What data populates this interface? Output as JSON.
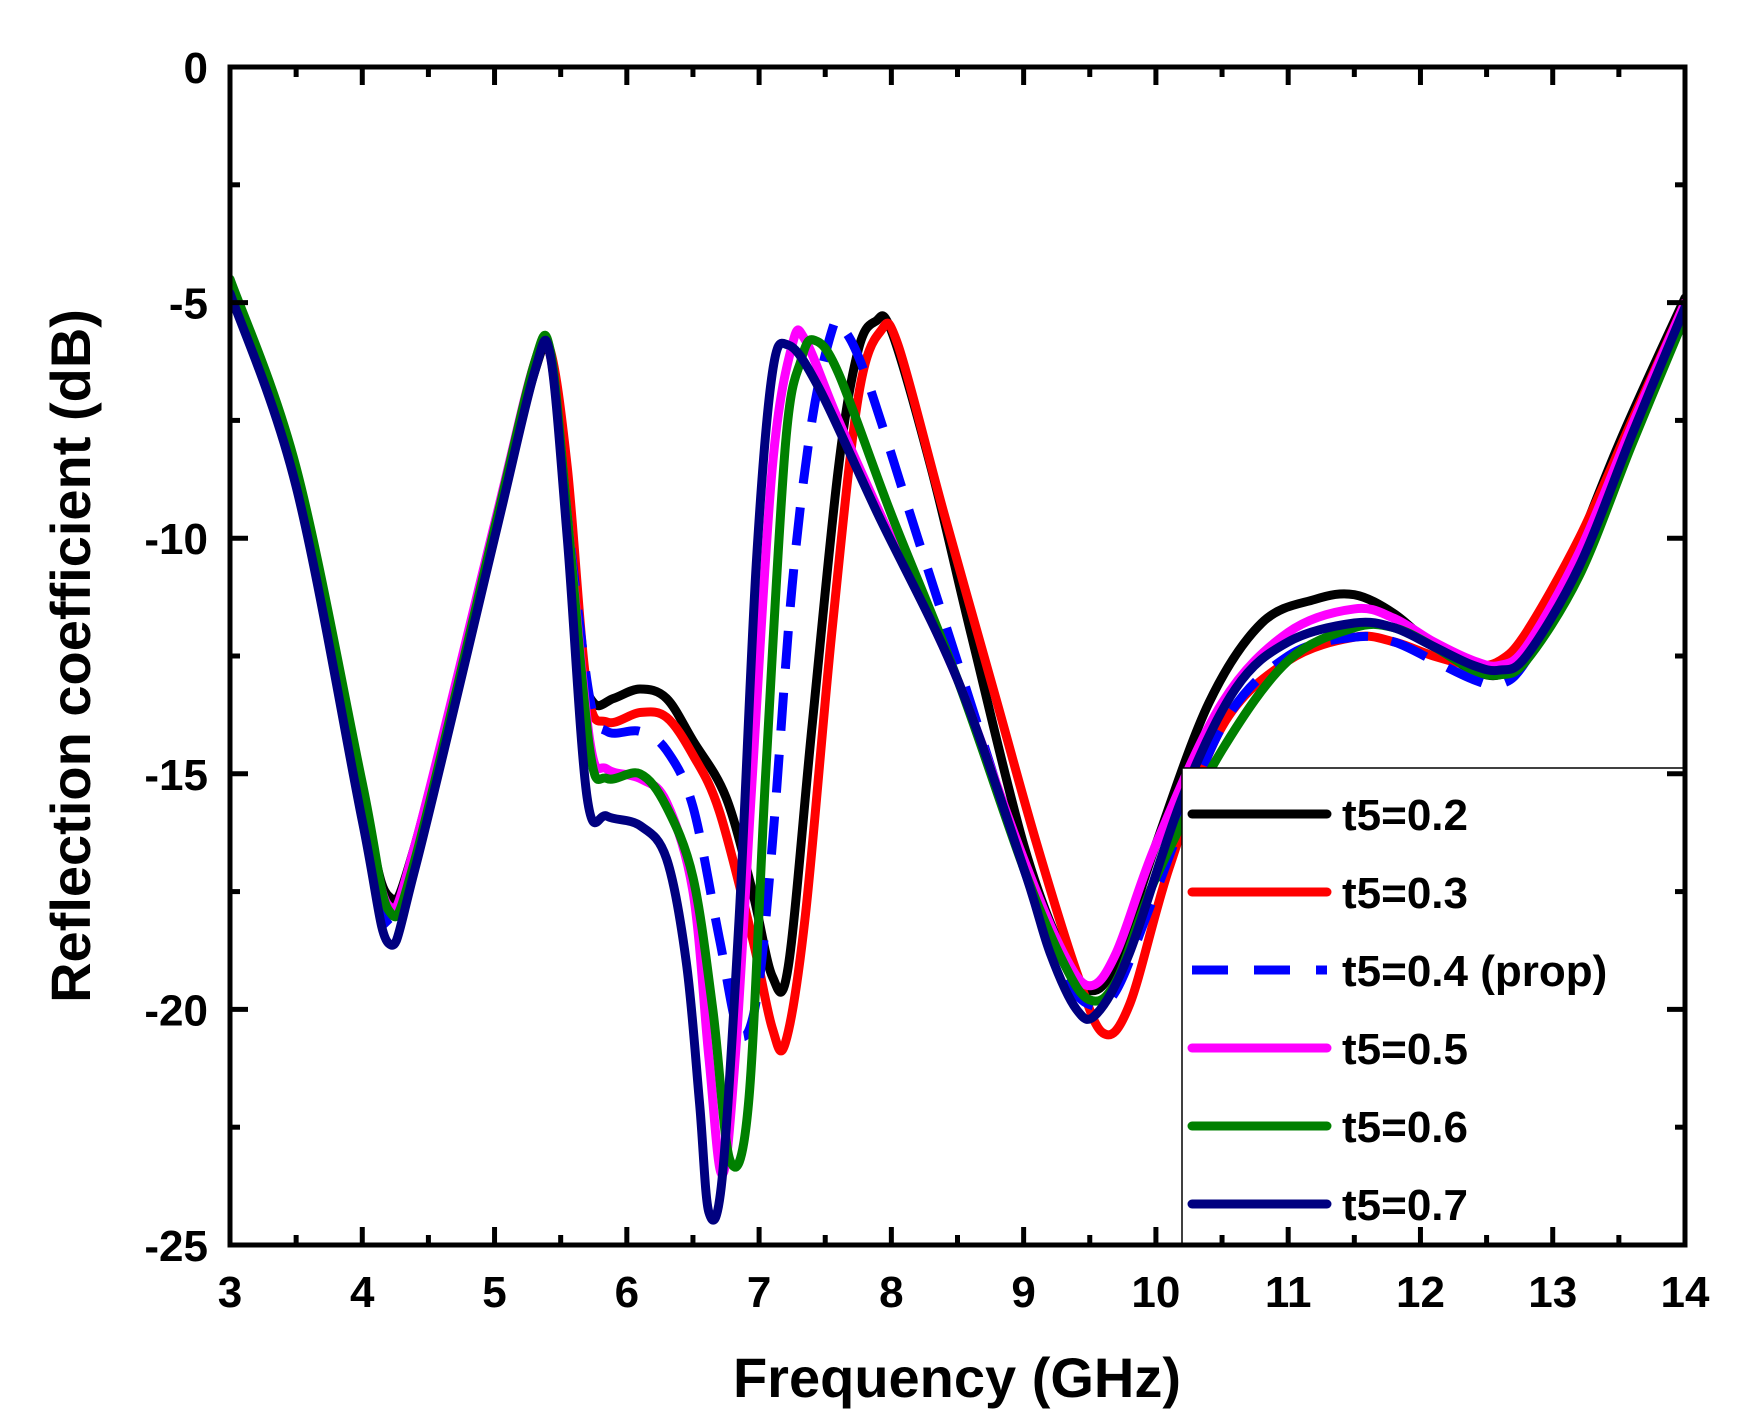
{
  "chart_data": {
    "type": "line",
    "title": "",
    "xlabel": "Frequency (GHz)",
    "ylabel": "Reflection coefficient (dB)",
    "xlim": [
      3,
      14
    ],
    "ylim": [
      -25,
      0
    ],
    "xticks": [
      3,
      4,
      5,
      6,
      7,
      8,
      9,
      10,
      11,
      12,
      13,
      14
    ],
    "yticks": [
      0,
      -5,
      -10,
      -15,
      -20,
      -25
    ],
    "grid": false,
    "legend_position": "bottom-right",
    "series": [
      {
        "name": "t5=0.2",
        "color": "#000000",
        "dash": false,
        "points": [
          [
            3,
            -4.7
          ],
          [
            3.5,
            -8.8
          ],
          [
            4,
            -15.5
          ],
          [
            4.2,
            -17.6
          ],
          [
            4.4,
            -16.5
          ],
          [
            5,
            -9.8
          ],
          [
            5.3,
            -6.5
          ],
          [
            5.42,
            -6.1
          ],
          [
            5.55,
            -9
          ],
          [
            5.65,
            -12.5
          ],
          [
            5.75,
            -13.5
          ],
          [
            5.9,
            -13.4
          ],
          [
            6.1,
            -13.2
          ],
          [
            6.3,
            -13.4
          ],
          [
            6.5,
            -14.3
          ],
          [
            6.75,
            -15.5
          ],
          [
            6.95,
            -17.5
          ],
          [
            7.1,
            -19.3
          ],
          [
            7.22,
            -19.1
          ],
          [
            7.4,
            -14
          ],
          [
            7.6,
            -8.5
          ],
          [
            7.75,
            -6
          ],
          [
            7.88,
            -5.4
          ],
          [
            8.0,
            -5.6
          ],
          [
            8.3,
            -8.5
          ],
          [
            8.6,
            -12
          ],
          [
            9,
            -16.5
          ],
          [
            9.3,
            -18.8
          ],
          [
            9.5,
            -19.6
          ],
          [
            9.7,
            -19
          ],
          [
            10,
            -16.5
          ],
          [
            10.4,
            -13.5
          ],
          [
            10.8,
            -11.8
          ],
          [
            11.2,
            -11.3
          ],
          [
            11.5,
            -11.2
          ],
          [
            11.8,
            -11.6
          ],
          [
            12.1,
            -12.3
          ],
          [
            12.4,
            -12.8
          ],
          [
            12.6,
            -12.9
          ],
          [
            12.8,
            -12.5
          ],
          [
            13,
            -11.5
          ],
          [
            13.5,
            -8
          ],
          [
            14,
            -4.9
          ]
        ]
      },
      {
        "name": "t5=0.3",
        "color": "#ff0000",
        "dash": false,
        "points": [
          [
            3,
            -4.7
          ],
          [
            3.5,
            -8.8
          ],
          [
            4,
            -15.6
          ],
          [
            4.2,
            -17.9
          ],
          [
            4.4,
            -16.6
          ],
          [
            5,
            -9.8
          ],
          [
            5.3,
            -6.3
          ],
          [
            5.42,
            -6.0
          ],
          [
            5.55,
            -8.5
          ],
          [
            5.7,
            -13.2
          ],
          [
            5.85,
            -13.9
          ],
          [
            6.1,
            -13.7
          ],
          [
            6.3,
            -13.8
          ],
          [
            6.5,
            -14.6
          ],
          [
            6.7,
            -15.8
          ],
          [
            6.95,
            -18.5
          ],
          [
            7.1,
            -20.4
          ],
          [
            7.2,
            -20.7
          ],
          [
            7.35,
            -18
          ],
          [
            7.55,
            -12
          ],
          [
            7.75,
            -7
          ],
          [
            7.92,
            -5.6
          ],
          [
            8.05,
            -5.9
          ],
          [
            8.4,
            -9.5
          ],
          [
            8.8,
            -13.5
          ],
          [
            9.1,
            -16.5
          ],
          [
            9.4,
            -19.2
          ],
          [
            9.6,
            -20.5
          ],
          [
            9.8,
            -19.9
          ],
          [
            10.1,
            -17
          ],
          [
            10.5,
            -14
          ],
          [
            11,
            -12.6
          ],
          [
            11.5,
            -12.1
          ],
          [
            11.8,
            -12.2
          ],
          [
            12.1,
            -12.5
          ],
          [
            12.4,
            -12.7
          ],
          [
            12.6,
            -12.6
          ],
          [
            12.8,
            -12
          ],
          [
            13.2,
            -10
          ],
          [
            13.6,
            -7.5
          ],
          [
            14,
            -5.0
          ]
        ]
      },
      {
        "name": "t5=0.4 (prop)",
        "color": "#0000ff",
        "dash": true,
        "points": [
          [
            3,
            -4.7
          ],
          [
            3.5,
            -8.8
          ],
          [
            4,
            -15.6
          ],
          [
            4.2,
            -18.2
          ],
          [
            4.4,
            -16.8
          ],
          [
            5,
            -9.8
          ],
          [
            5.3,
            -6.4
          ],
          [
            5.42,
            -6.0
          ],
          [
            5.55,
            -9.5
          ],
          [
            5.72,
            -13.4
          ],
          [
            5.85,
            -14.1
          ],
          [
            6.1,
            -14.1
          ],
          [
            6.3,
            -14.5
          ],
          [
            6.5,
            -15.7
          ],
          [
            6.7,
            -18.5
          ],
          [
            6.85,
            -20.5
          ],
          [
            6.98,
            -19.8
          ],
          [
            7.1,
            -16.5
          ],
          [
            7.25,
            -11
          ],
          [
            7.4,
            -7.5
          ],
          [
            7.55,
            -5.6
          ],
          [
            7.62,
            -5.5
          ],
          [
            7.8,
            -6.5
          ],
          [
            8.2,
            -10
          ],
          [
            8.6,
            -13.5
          ],
          [
            9,
            -17
          ],
          [
            9.3,
            -19.2
          ],
          [
            9.5,
            -19.9
          ],
          [
            9.7,
            -19.6
          ],
          [
            10,
            -17.5
          ],
          [
            10.5,
            -14
          ],
          [
            11,
            -12.5
          ],
          [
            11.5,
            -12.1
          ],
          [
            11.8,
            -12.2
          ],
          [
            12.1,
            -12.6
          ],
          [
            12.4,
            -13.0
          ],
          [
            12.6,
            -13.1
          ],
          [
            12.8,
            -12.6
          ],
          [
            13.2,
            -10.5
          ],
          [
            13.6,
            -7.8
          ],
          [
            14,
            -5.1
          ]
        ]
      },
      {
        "name": "t5=0.5",
        "color": "#ff00ff",
        "dash": false,
        "points": [
          [
            3,
            -4.7
          ],
          [
            3.5,
            -8.8
          ],
          [
            4,
            -15.4
          ],
          [
            4.2,
            -17.8
          ],
          [
            4.4,
            -16.5
          ],
          [
            5,
            -9.7
          ],
          [
            5.3,
            -6.3
          ],
          [
            5.42,
            -6.1
          ],
          [
            5.55,
            -9.5
          ],
          [
            5.72,
            -14.3
          ],
          [
            5.85,
            -14.9
          ],
          [
            6.1,
            -15.1
          ],
          [
            6.3,
            -15.6
          ],
          [
            6.5,
            -17.5
          ],
          [
            6.62,
            -21
          ],
          [
            6.72,
            -23.5
          ],
          [
            6.82,
            -21
          ],
          [
            6.95,
            -15
          ],
          [
            7.1,
            -8.5
          ],
          [
            7.25,
            -5.9
          ],
          [
            7.35,
            -5.8
          ],
          [
            7.6,
            -7.5
          ],
          [
            8,
            -10
          ],
          [
            8.5,
            -13
          ],
          [
            9,
            -16.8
          ],
          [
            9.3,
            -18.8
          ],
          [
            9.5,
            -19.5
          ],
          [
            9.7,
            -18.8
          ],
          [
            10,
            -16.5
          ],
          [
            10.5,
            -13.5
          ],
          [
            11,
            -12
          ],
          [
            11.5,
            -11.5
          ],
          [
            11.8,
            -11.7
          ],
          [
            12.1,
            -12.2
          ],
          [
            12.4,
            -12.6
          ],
          [
            12.6,
            -12.7
          ],
          [
            12.8,
            -12.3
          ],
          [
            13.2,
            -10.3
          ],
          [
            13.6,
            -7.6
          ],
          [
            14,
            -5.0
          ]
        ]
      },
      {
        "name": "t5=0.6",
        "color": "#008000",
        "dash": false,
        "points": [
          [
            3,
            -4.5
          ],
          [
            3.5,
            -8.5
          ],
          [
            4,
            -15.2
          ],
          [
            4.2,
            -17.9
          ],
          [
            4.4,
            -16.8
          ],
          [
            5,
            -9.8
          ],
          [
            5.3,
            -6.3
          ],
          [
            5.42,
            -6.0
          ],
          [
            5.55,
            -9.5
          ],
          [
            5.72,
            -14.5
          ],
          [
            5.85,
            -15.1
          ],
          [
            6.1,
            -15.0
          ],
          [
            6.3,
            -15.7
          ],
          [
            6.5,
            -17.2
          ],
          [
            6.65,
            -20
          ],
          [
            6.78,
            -23.2
          ],
          [
            6.92,
            -22
          ],
          [
            7.05,
            -15
          ],
          [
            7.2,
            -8
          ],
          [
            7.32,
            -6.2
          ],
          [
            7.42,
            -5.8
          ],
          [
            7.6,
            -6.5
          ],
          [
            8,
            -9.5
          ],
          [
            8.5,
            -13
          ],
          [
            9,
            -17
          ],
          [
            9.3,
            -19
          ],
          [
            9.5,
            -19.8
          ],
          [
            9.7,
            -19.4
          ],
          [
            10,
            -17.2
          ],
          [
            10.5,
            -14.5
          ],
          [
            11,
            -12.6
          ],
          [
            11.5,
            -11.9
          ],
          [
            11.8,
            -11.9
          ],
          [
            12.1,
            -12.3
          ],
          [
            12.4,
            -12.8
          ],
          [
            12.6,
            -12.9
          ],
          [
            12.8,
            -12.6
          ],
          [
            13.2,
            -10.8
          ],
          [
            13.6,
            -8
          ],
          [
            14,
            -5.3
          ]
        ]
      },
      {
        "name": "t5=0.7",
        "color": "#000080",
        "dash": false,
        "points": [
          [
            3,
            -4.8
          ],
          [
            3.5,
            -8.9
          ],
          [
            4,
            -16
          ],
          [
            4.2,
            -18.6
          ],
          [
            4.4,
            -17
          ],
          [
            5,
            -10
          ],
          [
            5.3,
            -6.5
          ],
          [
            5.42,
            -6.1
          ],
          [
            5.55,
            -10
          ],
          [
            5.7,
            -15.5
          ],
          [
            5.85,
            -15.9
          ],
          [
            6.1,
            -16.1
          ],
          [
            6.3,
            -16.8
          ],
          [
            6.45,
            -19
          ],
          [
            6.55,
            -22
          ],
          [
            6.62,
            -24.3
          ],
          [
            6.72,
            -23.6
          ],
          [
            6.85,
            -18
          ],
          [
            6.98,
            -10.5
          ],
          [
            7.1,
            -6.5
          ],
          [
            7.22,
            -5.9
          ],
          [
            7.45,
            -6.8
          ],
          [
            7.9,
            -9.5
          ],
          [
            8.5,
            -13
          ],
          [
            9,
            -17
          ],
          [
            9.2,
            -18.8
          ],
          [
            9.4,
            -20
          ],
          [
            9.55,
            -20.1
          ],
          [
            9.8,
            -18.8
          ],
          [
            10.2,
            -15.5
          ],
          [
            10.6,
            -13.2
          ],
          [
            11,
            -12.2
          ],
          [
            11.5,
            -11.8
          ],
          [
            11.8,
            -11.9
          ],
          [
            12.1,
            -12.3
          ],
          [
            12.4,
            -12.7
          ],
          [
            12.6,
            -12.8
          ],
          [
            12.8,
            -12.5
          ],
          [
            13.2,
            -10.6
          ],
          [
            13.6,
            -7.8
          ],
          [
            14,
            -5.1
          ]
        ]
      }
    ]
  }
}
